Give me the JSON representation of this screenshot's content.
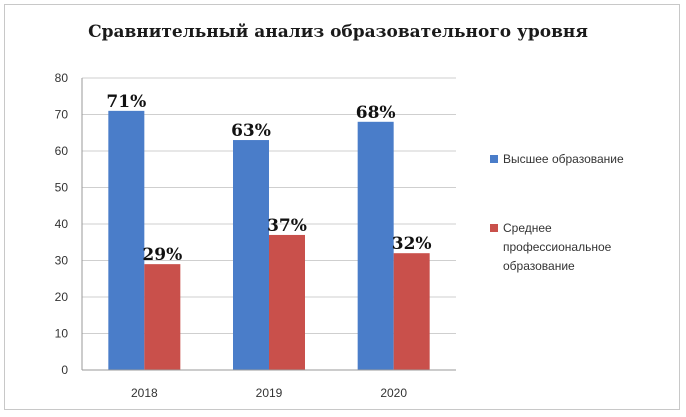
{
  "chart_data": {
    "type": "bar",
    "title": "Сравнительный анализ образовательного уровня",
    "xlabel": "",
    "ylabel": "",
    "categories": [
      "2018",
      "2019",
      "2020"
    ],
    "ylim": [
      0,
      80
    ],
    "yticks": [
      0,
      10,
      20,
      30,
      40,
      50,
      60,
      70,
      80
    ],
    "grid": true,
    "legend_position": "right",
    "series": [
      {
        "name": "Высшее образование",
        "color": "#4a7dc9",
        "values": [
          71,
          63,
          68
        ],
        "labels": [
          "71%",
          "63%",
          "68%"
        ]
      },
      {
        "name": "Среднее профессиональное образование",
        "name_lines": [
          "Среднее",
          "профессиональное",
          "образование"
        ],
        "color": "#c9504b",
        "values": [
          29,
          37,
          32
        ],
        "labels": [
          "29%",
          "37%",
          "32%"
        ]
      }
    ]
  }
}
